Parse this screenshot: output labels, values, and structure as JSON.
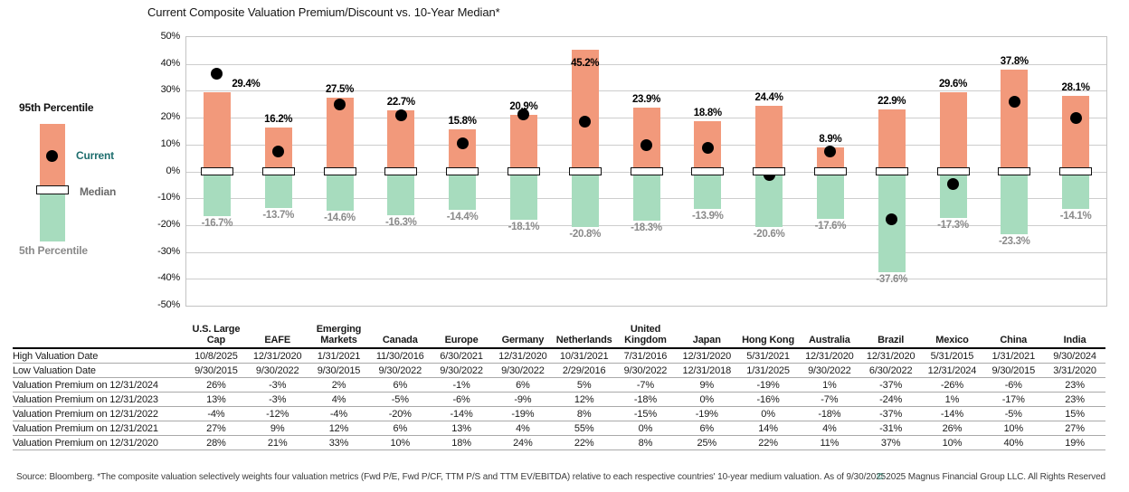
{
  "title": "Current Composite Valuation Premium/Discount vs. 10-Year Median*",
  "legend": {
    "p95": "95th Percentile",
    "current": "Current",
    "median": "Median",
    "p5": "5th Percentile"
  },
  "colors": {
    "salmon": "#F2997B",
    "green": "#A7DCBE",
    "teal": "#1E6E6E",
    "median_gray": "#696969",
    "light_gray_label": "#8a8a8a",
    "copyright_teal": "#2F8C78"
  },
  "chart_data": {
    "type": "bar",
    "title": "Current Composite Valuation Premium/Discount vs. 10-Year Median*",
    "xlabel": "",
    "ylabel": "",
    "ylim": [
      -50,
      50
    ],
    "ytick_step": 10,
    "ytick_labels": [
      "50%",
      "40%",
      "30%",
      "20%",
      "10%",
      "0%",
      "-10%",
      "-20%",
      "-30%",
      "-40%",
      "-50%"
    ],
    "grid": true,
    "legend_position": "left",
    "categories": [
      "U.S. Large Cap",
      "EAFE",
      "Emerging Markets",
      "Canada",
      "Europe",
      "Germany",
      "Netherlands",
      "United Kingdom",
      "Japan",
      "Hong Kong",
      "Australia",
      "Brazil",
      "Mexico",
      "China",
      "India"
    ],
    "series": [
      {
        "name": "95th Percentile",
        "role": "bar-above-zero",
        "color": "#F2997B",
        "values": [
          29.4,
          16.2,
          27.5,
          22.7,
          15.8,
          20.9,
          45.2,
          23.9,
          18.8,
          24.4,
          8.9,
          22.9,
          29.6,
          37.8,
          28.1
        ],
        "labels": [
          "29.4%",
          "16.2%",
          "27.5%",
          "22.7%",
          "15.8%",
          "20.9%",
          "45.2%",
          "23.9%",
          "18.8%",
          "24.4%",
          "8.9%",
          "22.9%",
          "29.6%",
          "37.8%",
          "28.1%"
        ]
      },
      {
        "name": "5th Percentile",
        "role": "bar-below-zero",
        "color": "#A7DCBE",
        "values": [
          -16.7,
          -13.7,
          -14.6,
          -16.3,
          -14.4,
          -18.1,
          -20.8,
          -18.3,
          -13.9,
          -20.6,
          -17.6,
          -37.6,
          -17.3,
          -23.3,
          -14.1
        ],
        "labels": [
          "-16.7%",
          "-13.7%",
          "-14.6%",
          "-16.3%",
          "-14.4%",
          "-18.1%",
          "-20.8%",
          "-18.3%",
          "-13.9%",
          "-20.6%",
          "-17.6%",
          "-37.6%",
          "-17.3%",
          "-23.3%",
          "-14.1%"
        ]
      },
      {
        "name": "Current",
        "role": "dot",
        "color": "#000000",
        "values": [
          36.5,
          7.5,
          24.8,
          21.0,
          10.4,
          21.2,
          18.6,
          9.8,
          8.8,
          -1.5,
          7.4,
          -17.8,
          -4.6,
          25.9,
          20.0
        ]
      },
      {
        "name": "Median",
        "role": "white-box-marker-at-zero",
        "color": "#FFFFFF",
        "values": [
          0,
          0,
          0,
          0,
          0,
          0,
          0,
          0,
          0,
          0,
          0,
          0,
          0,
          0,
          0
        ]
      }
    ]
  },
  "table": {
    "columns": [
      "U.S. Large\nCap",
      "EAFE",
      "Emerging\nMarkets",
      "Canada",
      "Europe",
      "Germany",
      "Netherlands",
      "United\nKingdom",
      "Japan",
      "Hong Kong",
      "Australia",
      "Brazil",
      "Mexico",
      "China",
      "India"
    ],
    "rows": [
      {
        "label": "High Valuation Date",
        "values": [
          "10/8/2025",
          "12/31/2020",
          "1/31/2021",
          "11/30/2016",
          "6/30/2021",
          "12/31/2020",
          "10/31/2021",
          "7/31/2016",
          "12/31/2020",
          "5/31/2021",
          "12/31/2020",
          "12/31/2020",
          "5/31/2015",
          "1/31/2021",
          "9/30/2024"
        ]
      },
      {
        "label": "Low Valuation Date",
        "values": [
          "9/30/2015",
          "9/30/2022",
          "9/30/2015",
          "9/30/2022",
          "9/30/2022",
          "9/30/2022",
          "2/29/2016",
          "9/30/2022",
          "12/31/2018",
          "1/31/2025",
          "9/30/2022",
          "6/30/2022",
          "12/31/2024",
          "9/30/2015",
          "3/31/2020"
        ]
      },
      {
        "label": "Valuation Premium on 12/31/2024",
        "values": [
          "26%",
          "-3%",
          "2%",
          "6%",
          "-1%",
          "6%",
          "5%",
          "-7%",
          "9%",
          "-19%",
          "1%",
          "-37%",
          "-26%",
          "-6%",
          "23%"
        ]
      },
      {
        "label": "Valuation Premium on 12/31/2023",
        "values": [
          "13%",
          "-3%",
          "4%",
          "-5%",
          "-6%",
          "-9%",
          "12%",
          "-18%",
          "0%",
          "-16%",
          "-7%",
          "-24%",
          "1%",
          "-17%",
          "23%"
        ]
      },
      {
        "label": "Valuation Premium on 12/31/2022",
        "values": [
          "-4%",
          "-12%",
          "-4%",
          "-20%",
          "-14%",
          "-19%",
          "8%",
          "-15%",
          "-19%",
          "0%",
          "-18%",
          "-37%",
          "-14%",
          "-5%",
          "15%"
        ]
      },
      {
        "label": "Valuation Premium on 12/31/2021",
        "values": [
          "27%",
          "9%",
          "12%",
          "6%",
          "13%",
          "4%",
          "55%",
          "0%",
          "6%",
          "14%",
          "4%",
          "-31%",
          "26%",
          "10%",
          "27%"
        ]
      },
      {
        "label": "Valuation Premium on 12/31/2020",
        "values": [
          "28%",
          "21%",
          "33%",
          "10%",
          "18%",
          "24%",
          "22%",
          "8%",
          "25%",
          "22%",
          "11%",
          "37%",
          "10%",
          "40%",
          "19%"
        ]
      }
    ]
  },
  "footer": {
    "source_note": "Source: Bloomberg. *The composite valuation selectively weights four valuation metrics (Fwd P/E, Fwd P/CF, TTM P/S and TTM EV/EBITDA) relative to each respective countries' 10-year medium valuation. As of 9/30/2025.",
    "copyright_symbol": "©",
    "copyright_text": " 2025 Magnus Financial Group LLC. All Rights Reserved"
  }
}
